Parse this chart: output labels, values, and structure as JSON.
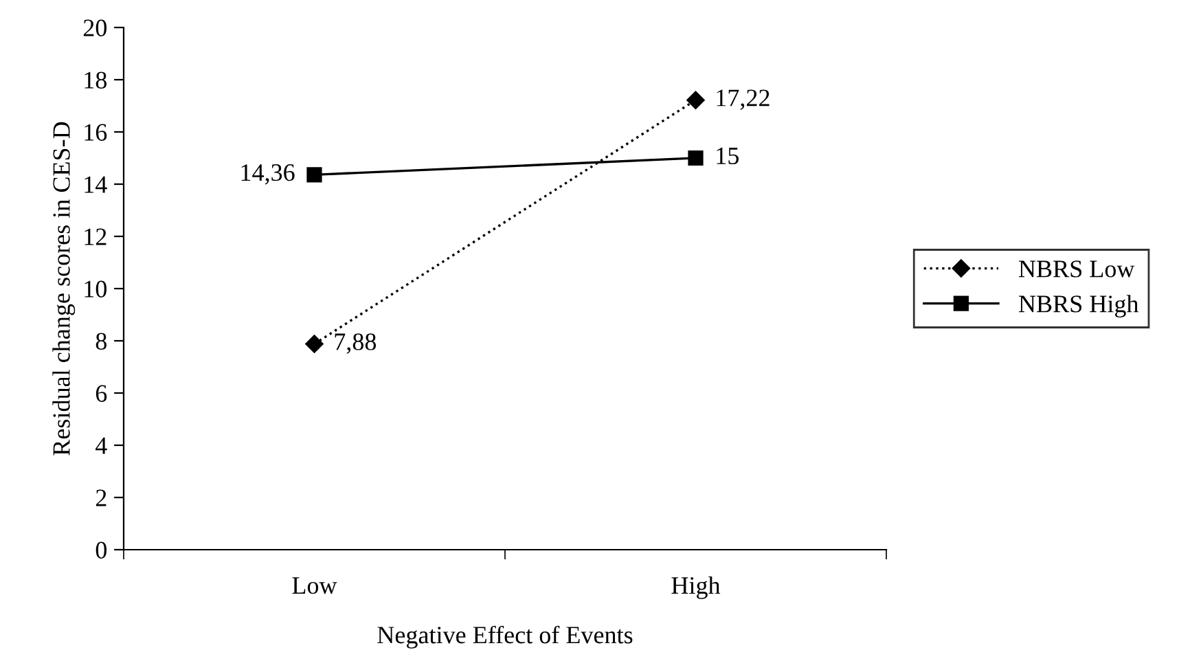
{
  "chart_data": {
    "type": "line",
    "xlabel": "Negative Effect of Events",
    "ylabel": "Residual change scores in CES-D",
    "categories": [
      "Low",
      "High"
    ],
    "series": [
      {
        "name": "NBRS Low",
        "color": "#000000",
        "marker": "diamond",
        "line_style": "dotted",
        "values": [
          7.88,
          17.22
        ],
        "value_labels": [
          "7,88",
          "17,22"
        ]
      },
      {
        "name": "NBRS High",
        "color": "#000000",
        "marker": "square",
        "line_style": "solid",
        "values": [
          14.36,
          15
        ],
        "value_labels": [
          "14,36",
          "15"
        ]
      }
    ],
    "ylim": [
      0,
      20
    ],
    "yticks": [
      0,
      2,
      4,
      6,
      8,
      10,
      12,
      14,
      16,
      18,
      20
    ],
    "grid": false,
    "legend": "right"
  }
}
